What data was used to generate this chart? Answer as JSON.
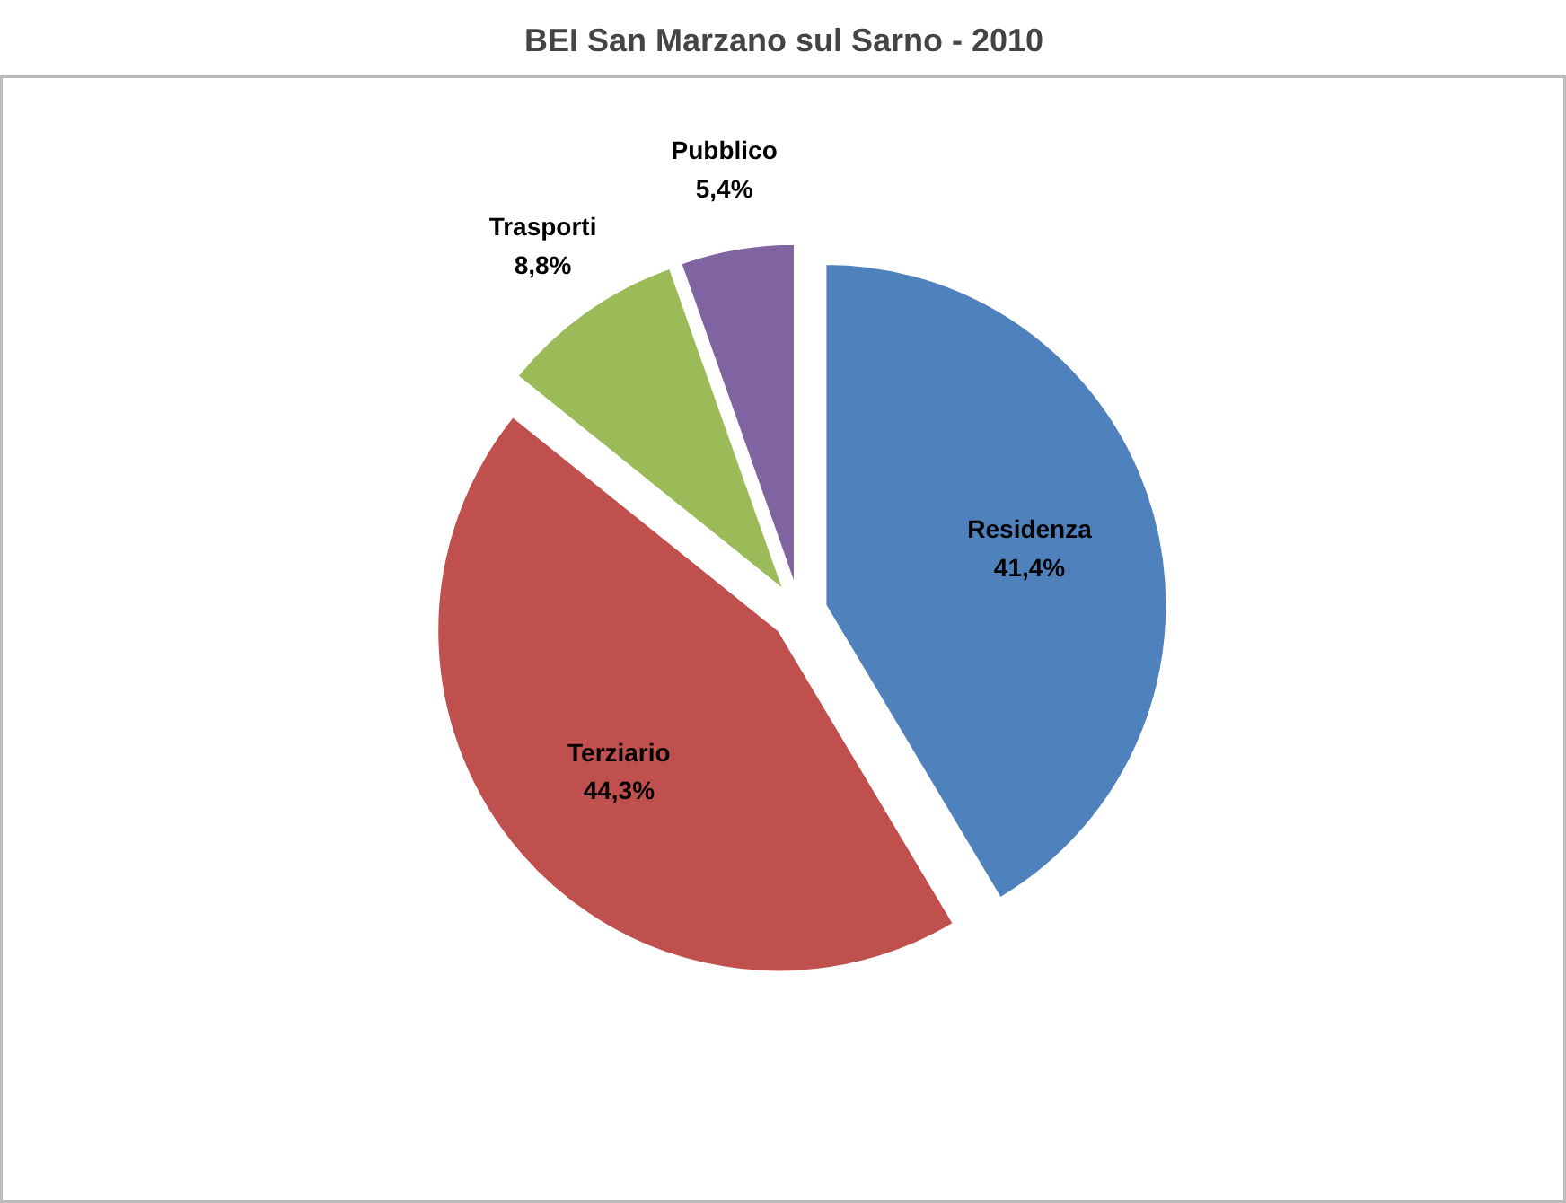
{
  "chart_data": {
    "type": "pie",
    "title": "BEI San Marzano sul Sarno - 2010",
    "categories": [
      "Residenza",
      "Terziario",
      "Trasporti",
      "Pubblico"
    ],
    "values": [
      41.4,
      44.3,
      8.8,
      5.4
    ],
    "colors": [
      "#4f81bd",
      "#c0504d",
      "#9bbb59",
      "#8064a2"
    ],
    "value_labels": [
      "41,4%",
      "44,3%",
      "8,8%",
      "5,4%"
    ]
  }
}
